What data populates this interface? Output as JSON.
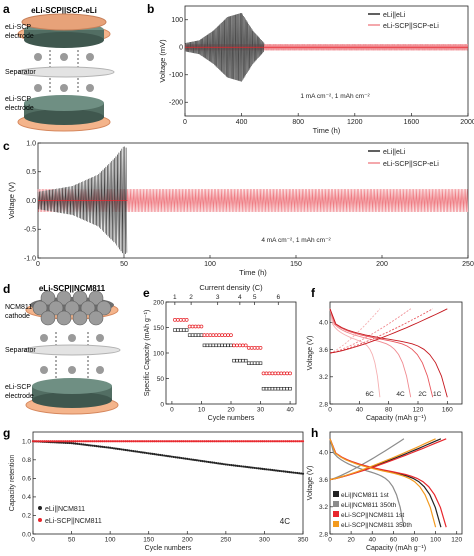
{
  "figure": {
    "panel_labels": [
      "a",
      "b",
      "c",
      "d",
      "e",
      "f",
      "g",
      "h"
    ],
    "a": {
      "title": "eLi-SCP||SCP-eLi",
      "top_label": [
        "eLi-SCP",
        "electrode"
      ],
      "middle_label": "Separator",
      "bottom_label": [
        "eLi-SCP",
        "electrode"
      ]
    },
    "d": {
      "title": "eLi-SCP||NCM811",
      "top_label": [
        "NCM811",
        "cathode"
      ],
      "middle_label": "Separator",
      "bottom_label": [
        "eLi-SCP",
        "electrode"
      ]
    },
    "colors": {
      "black": "#2b2b2b",
      "red": "#e8262c",
      "pink": "#f08a90",
      "orange": "#f39a1e",
      "gray": "#8c8c8c",
      "darkgray": "#555555"
    }
  },
  "chart_data": [
    {
      "panel": "b",
      "type": "line",
      "xlabel": "Time (h)",
      "ylabel": "Voltage (mV)",
      "xlim": [
        0,
        2000
      ],
      "ylim": [
        -250,
        150
      ],
      "xticks": [
        0,
        400,
        800,
        1200,
        1600,
        2000
      ],
      "yticks": [
        -200,
        -100,
        0,
        100
      ],
      "annotation": "1 mA cm⁻², 1 mAh cm⁻²",
      "legend": [
        "eLi||eLi",
        "eLi-SCP||SCP-eLi"
      ],
      "series": [
        {
          "name": "eLi||eLi",
          "color": "#4a4a4a",
          "x_range": [
            0,
            560
          ],
          "envelope_x": [
            0,
            100,
            200,
            300,
            400,
            480,
            560
          ],
          "envelope_y": [
            15,
            25,
            60,
            110,
            125,
            60,
            15
          ]
        },
        {
          "name": "eLi-SCP||SCP-eLi",
          "color": "#f08a90",
          "x_range": [
            0,
            2000
          ],
          "amplitude": 12
        }
      ]
    },
    {
      "panel": "c",
      "type": "line",
      "xlabel": "Time (h)",
      "ylabel": "Voltage (V)",
      "xlim": [
        0,
        250
      ],
      "ylim": [
        -1.0,
        1.0
      ],
      "xticks": [
        0,
        50,
        100,
        150,
        200,
        250
      ],
      "yticks": [
        -1.0,
        -0.5,
        0.0,
        0.5,
        1.0
      ],
      "annotation": "4 mA cm⁻², 1 mAh cm⁻²",
      "legend": [
        "eLi||eLi",
        "eLi-SCP||SCP-eLi"
      ],
      "series": [
        {
          "name": "eLi||eLi",
          "color": "#3a3a3a",
          "x_range": [
            0,
            52
          ],
          "envelope_x": [
            0,
            20,
            35,
            45,
            50,
            52
          ],
          "envelope_y": [
            0.15,
            0.25,
            0.45,
            0.75,
            0.95,
            0.9
          ]
        },
        {
          "name": "eLi-SCP||SCP-eLi",
          "color": "#ef7d84",
          "x_range": [
            0,
            250
          ],
          "amplitude": 0.2
        }
      ]
    },
    {
      "panel": "e",
      "type": "scatter",
      "xlabel": "Cycle numbers",
      "ylabel": "Specific Capacity (mAh g⁻¹)",
      "x2label": "Current density (C)",
      "xlim": [
        -2,
        42
      ],
      "ylim": [
        0,
        200
      ],
      "xticks": [
        0,
        10,
        20,
        30,
        40
      ],
      "yticks": [
        0,
        50,
        100,
        150,
        200
      ],
      "x2ticks": [
        1,
        2,
        3,
        4,
        5,
        6
      ],
      "segments": [
        {
          "cycles": [
            1,
            5
          ],
          "black": 145,
          "red": 165
        },
        {
          "cycles": [
            6,
            10
          ],
          "black": 135,
          "red": 152
        },
        {
          "cycles": [
            11,
            20
          ],
          "black": 115,
          "red": 135
        },
        {
          "cycles": [
            21,
            25
          ],
          "black": 85,
          "red": 115
        },
        {
          "cycles": [
            26,
            30
          ],
          "black": 80,
          "red": 110
        },
        {
          "cycles": [
            31,
            40
          ],
          "black": 30,
          "red": 60
        }
      ]
    },
    {
      "panel": "f",
      "type": "line",
      "xlabel": "Capacity (mAh g⁻¹)",
      "ylabel": "Voltage (V)",
      "xlim": [
        0,
        180
      ],
      "ylim": [
        2.8,
        4.3
      ],
      "xticks": [
        0,
        40,
        80,
        120,
        160
      ],
      "yticks": [
        2.8,
        3.2,
        3.6,
        4.0
      ],
      "rate_labels": [
        "6C",
        "4C",
        "2C",
        "1C"
      ],
      "curves_end_capacity": [
        68,
        110,
        140,
        160
      ]
    },
    {
      "panel": "g",
      "type": "scatter",
      "xlabel": "Cycle numbers",
      "ylabel": "Capacity retention",
      "xlim": [
        0,
        350
      ],
      "ylim": [
        0.0,
        1.1
      ],
      "xticks": [
        0,
        50,
        100,
        150,
        200,
        250,
        300,
        350
      ],
      "yticks": [
        0.0,
        0.2,
        0.4,
        0.6,
        0.8,
        1.0
      ],
      "annotation": "4C",
      "legend": [
        "eLi||NCM811",
        "eLi-SCP||NCM811"
      ],
      "series": [
        {
          "name": "eLi||NCM811",
          "x": [
            0,
            50,
            100,
            150,
            200,
            250,
            300,
            350
          ],
          "y": [
            1.0,
            0.98,
            0.93,
            0.87,
            0.81,
            0.75,
            0.7,
            0.65
          ]
        },
        {
          "name": "eLi-SCP||NCM811",
          "x": [
            0,
            50,
            100,
            150,
            200,
            250,
            300,
            350
          ],
          "y": [
            1.0,
            1.0,
            1.0,
            1.0,
            1.0,
            1.0,
            1.0,
            1.0
          ]
        }
      ]
    },
    {
      "panel": "h",
      "type": "line",
      "xlabel": "Capacity (mAh g⁻¹)",
      "ylabel": "Voltage (V)",
      "xlim": [
        0,
        125
      ],
      "ylim": [
        2.8,
        4.3
      ],
      "xticks": [
        0,
        20,
        40,
        60,
        80,
        100,
        120
      ],
      "yticks": [
        2.8,
        3.2,
        3.6,
        4.0
      ],
      "legend": [
        "eLi||NCM811 1st",
        "eLi||NCM811 350th",
        "eLi-SCP||NCM811 1st",
        "eLi-SCP||NCM811 350th"
      ],
      "curves_end_capacity": [
        105,
        70,
        110,
        100
      ]
    }
  ]
}
